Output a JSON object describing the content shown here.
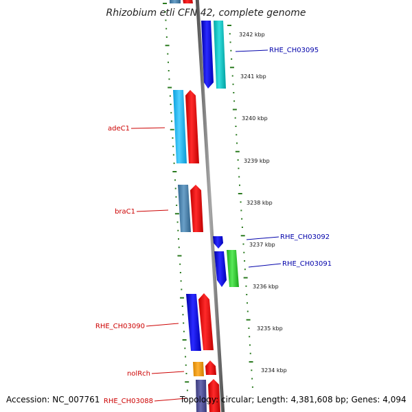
{
  "title": "Rhizobium etli CFN 42, complete genome",
  "footer": {
    "accession": "Accession: NC_007761",
    "summary": "Topology: circular; Length: 4,381,608 bp; Genes: 4,094"
  },
  "colors": {
    "backbone": "#7f7f7f",
    "tick": "#2a7a1f",
    "label_left": "#cc0000",
    "label_right": "#0000aa"
  },
  "scale_labels": [
    "3242 kbp",
    "3241 kbp",
    "3240 kbp",
    "3239 kbp",
    "3238 kbp",
    "3237 kbp",
    "3236 kbp",
    "3235 kbp",
    "3234 kbp"
  ],
  "genes_left": [
    {
      "name": "adeC1"
    },
    {
      "name": "braC1"
    },
    {
      "name": "RHE_CH03090"
    },
    {
      "name": "nolRch"
    },
    {
      "name": "RHE_CH03088"
    }
  ],
  "genes_right": [
    {
      "name": "RHE_CH03095"
    },
    {
      "name": "RHE_CH03092"
    },
    {
      "name": "RHE_CH03091"
    }
  ]
}
